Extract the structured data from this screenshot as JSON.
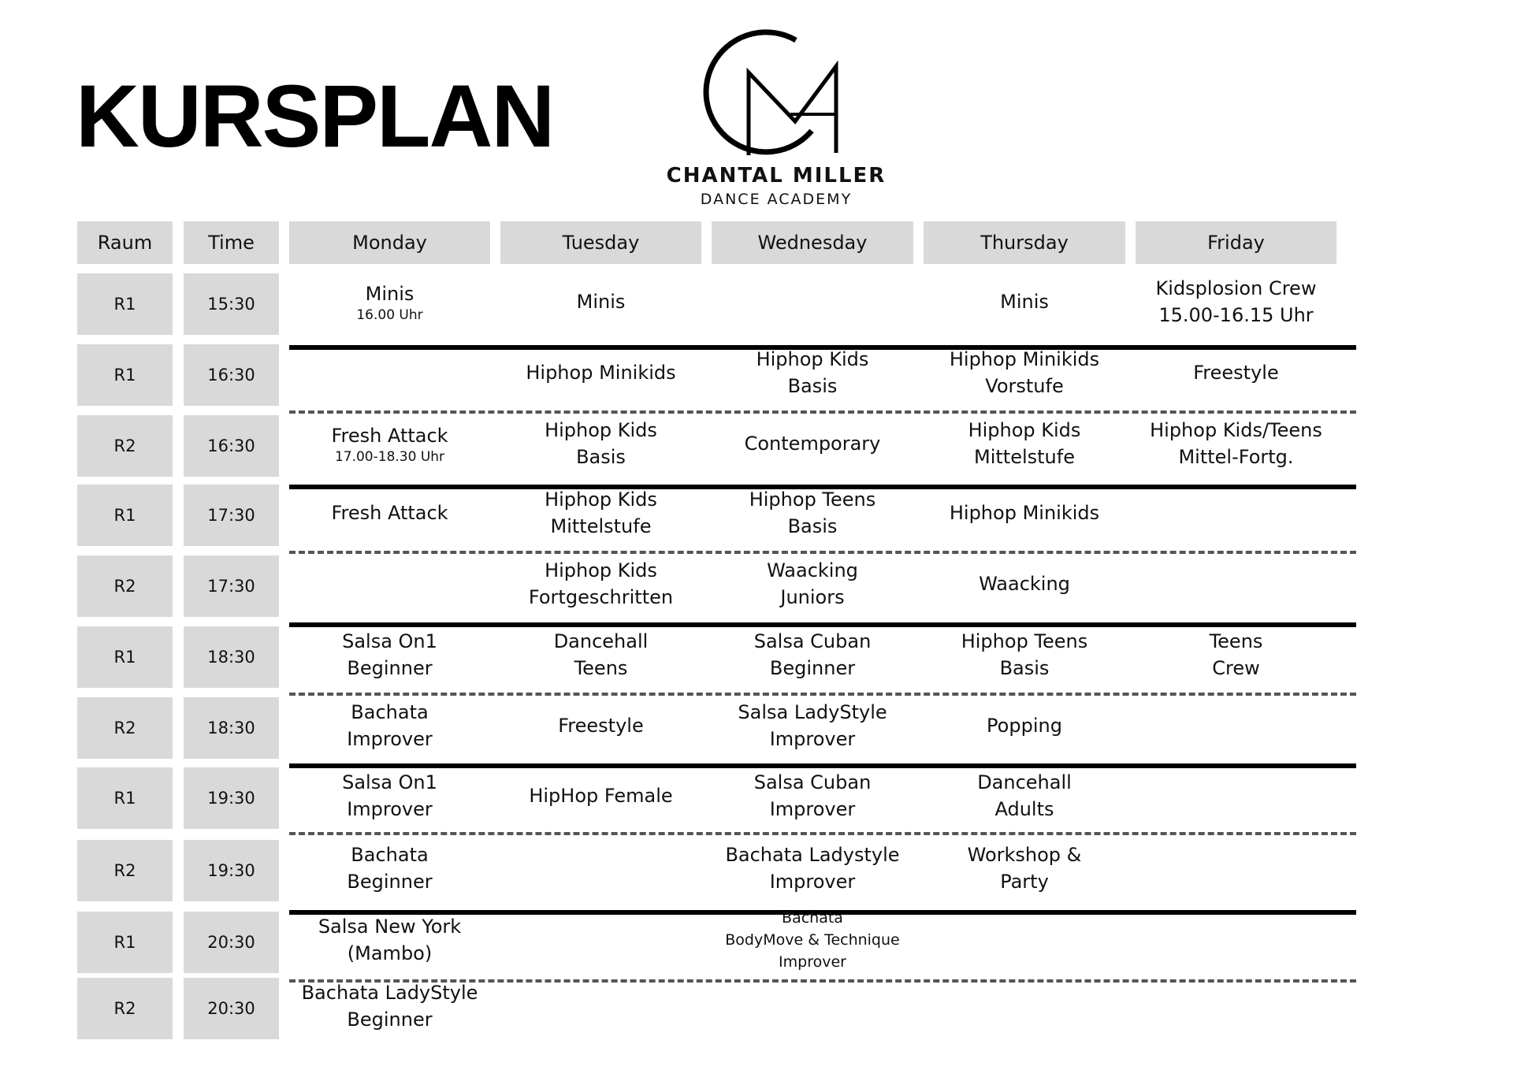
{
  "title": "KURSPLAN",
  "logo": {
    "name": "CHANTAL MILLER",
    "subtitle": "DANCE ACADEMY",
    "icon": "cm-monogram-logo"
  },
  "headers": [
    "Raum",
    "Time",
    "Monday",
    "Tuesday",
    "Wednesday",
    "Thursday",
    "Friday"
  ],
  "rows": [
    {
      "room": "R1",
      "time": "15:30",
      "separator_after": "solid",
      "cells": [
        {
          "lines": [
            "Minis"
          ],
          "note": "16.00 Uhr"
        },
        {
          "lines": [
            "Minis"
          ]
        },
        {
          "lines": []
        },
        {
          "lines": [
            "Minis"
          ]
        },
        {
          "lines": [
            "Kidsplosion  Crew",
            "15.00-16.15 Uhr"
          ]
        }
      ]
    },
    {
      "room": "R1",
      "time": "16:30",
      "separator_after": "dashed",
      "cells": [
        {
          "lines": []
        },
        {
          "lines": [
            "Hiphop Minikids"
          ]
        },
        {
          "lines": [
            "Hiphop Kids",
            "Basis"
          ]
        },
        {
          "lines": [
            "Hiphop Minikids",
            "Vorstufe"
          ]
        },
        {
          "lines": [
            "Freestyle"
          ]
        }
      ]
    },
    {
      "room": "R2",
      "time": "16:30",
      "separator_after": "solid",
      "cells": [
        {
          "lines": [
            "Fresh Attack"
          ],
          "note": "17.00-18.30 Uhr"
        },
        {
          "lines": [
            "Hiphop Kids",
            "Basis"
          ]
        },
        {
          "lines": [
            "Contemporary"
          ]
        },
        {
          "lines": [
            "Hiphop Kids",
            "Mittelstufe"
          ]
        },
        {
          "lines": [
            "Hiphop Kids/Teens",
            "Mittel-Fortg."
          ]
        }
      ]
    },
    {
      "room": "R1",
      "time": "17:30",
      "separator_after": "dashed",
      "cells": [
        {
          "lines": [
            "Fresh Attack"
          ]
        },
        {
          "lines": [
            "Hiphop Kids",
            "Mittelstufe"
          ]
        },
        {
          "lines": [
            "Hiphop Teens",
            "Basis"
          ]
        },
        {
          "lines": [
            "Hiphop Minikids"
          ]
        },
        {
          "lines": []
        }
      ]
    },
    {
      "room": "R2",
      "time": "17:30",
      "separator_after": "solid",
      "cells": [
        {
          "lines": []
        },
        {
          "lines": [
            "Hiphop Kids",
            "Fortgeschritten"
          ]
        },
        {
          "lines": [
            "Waacking",
            "Juniors"
          ]
        },
        {
          "lines": [
            "Waacking"
          ]
        },
        {
          "lines": []
        }
      ]
    },
    {
      "room": "R1",
      "time": "18:30",
      "separator_after": "dashed",
      "cells": [
        {
          "lines": [
            "Salsa On1",
            "Beginner"
          ]
        },
        {
          "lines": [
            "Dancehall",
            "Teens"
          ]
        },
        {
          "lines": [
            "Salsa Cuban",
            "Beginner"
          ]
        },
        {
          "lines": [
            "Hiphop Teens",
            "Basis"
          ]
        },
        {
          "lines": [
            "Teens",
            "Crew"
          ]
        }
      ]
    },
    {
      "room": "R2",
      "time": "18:30",
      "separator_after": "solid",
      "cells": [
        {
          "lines": [
            "Bachata",
            "Improver"
          ]
        },
        {
          "lines": [
            "Freestyle"
          ]
        },
        {
          "lines": [
            "Salsa LadyStyle",
            "Improver"
          ]
        },
        {
          "lines": [
            "Popping"
          ]
        },
        {
          "lines": []
        }
      ]
    },
    {
      "room": "R1",
      "time": "19:30",
      "separator_after": "dashed",
      "cells": [
        {
          "lines": [
            "Salsa On1",
            "Improver"
          ]
        },
        {
          "lines": [
            "HipHop Female"
          ]
        },
        {
          "lines": [
            "Salsa Cuban",
            "Improver"
          ]
        },
        {
          "lines": [
            "Dancehall",
            "Adults"
          ]
        },
        {
          "lines": []
        }
      ]
    },
    {
      "room": "R2",
      "time": "19:30",
      "separator_after": "solid",
      "cells": [
        {
          "lines": [
            "Bachata",
            "Beginner"
          ]
        },
        {
          "lines": []
        },
        {
          "lines": [
            "Bachata Ladystyle",
            "Improver"
          ]
        },
        {
          "lines": [
            "Workshop &",
            "Party"
          ]
        },
        {
          "lines": []
        }
      ]
    },
    {
      "room": "R1",
      "time": "20:30",
      "separator_after": "dashed",
      "cells": [
        {
          "lines": [
            "Salsa New York",
            "(Mambo)"
          ]
        },
        {
          "lines": []
        },
        {
          "lines": [
            "Bachata",
            "BodyMove & Technique",
            "Improver"
          ]
        },
        {
          "lines": []
        },
        {
          "lines": []
        }
      ]
    },
    {
      "room": "R2",
      "time": "20:30",
      "separator_after": "",
      "cells": [
        {
          "lines": [
            "Bachata LadyStyle",
            "Beginner"
          ]
        },
        {
          "lines": []
        },
        {
          "lines": []
        },
        {
          "lines": []
        },
        {
          "lines": []
        }
      ]
    }
  ]
}
